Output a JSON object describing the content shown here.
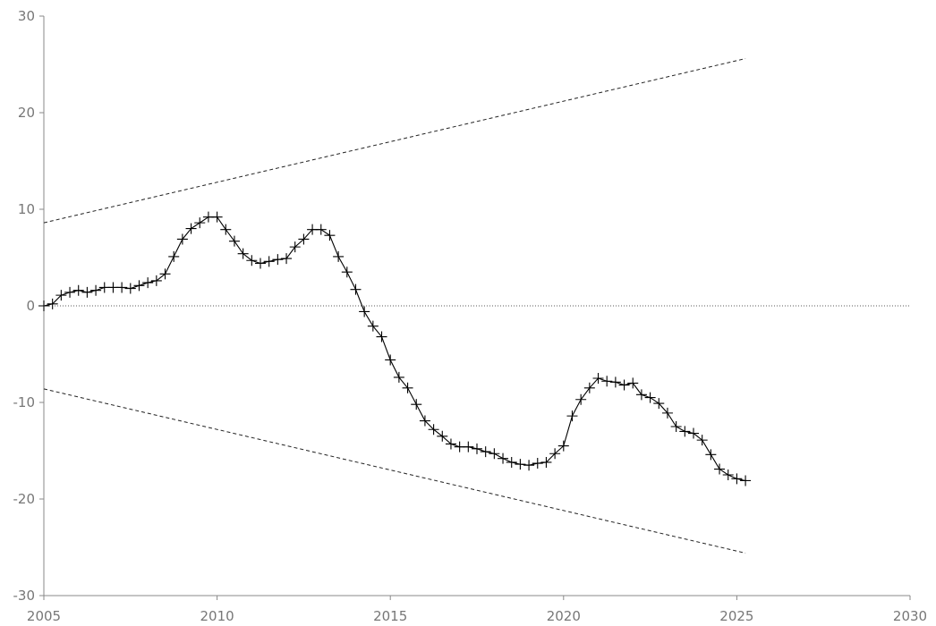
{
  "chart_data": {
    "type": "line",
    "title": "",
    "xlabel": "",
    "ylabel": "",
    "xlim": [
      2005,
      2030
    ],
    "ylim": [
      -30,
      30
    ],
    "x_ticks": [
      2005,
      2010,
      2015,
      2020,
      2025,
      2030
    ],
    "y_ticks": [
      -30,
      -20,
      -10,
      0,
      10,
      20,
      30
    ],
    "x_tick_labels": [
      "2005",
      "2010",
      "2015",
      "2020",
      "2025",
      "2030"
    ],
    "y_tick_labels": [
      "-30",
      "-20",
      "-10",
      "0",
      "10",
      "20",
      "30"
    ],
    "grid": false,
    "series": [
      {
        "marker": "plus",
        "color": "#000000",
        "x": [
          2005.0,
          2005.25,
          2005.5,
          2005.75,
          2006.0,
          2006.25,
          2006.5,
          2006.75,
          2007.0,
          2007.25,
          2007.5,
          2007.75,
          2008.0,
          2008.25,
          2008.5,
          2008.75,
          2009.0,
          2009.25,
          2009.5,
          2009.75,
          2010.0,
          2010.25,
          2010.5,
          2010.75,
          2011.0,
          2011.25,
          2011.5,
          2011.75,
          2012.0,
          2012.25,
          2012.5,
          2012.75,
          2013.0,
          2013.25,
          2013.5,
          2013.75,
          2014.0,
          2014.25,
          2014.5,
          2014.75,
          2015.0,
          2015.25,
          2015.5,
          2015.75,
          2016.0,
          2016.25,
          2016.5,
          2016.75,
          2017.0,
          2017.25,
          2017.5,
          2017.75,
          2018.0,
          2018.25,
          2018.5,
          2018.75,
          2019.0,
          2019.25,
          2019.5,
          2019.75,
          2020.0,
          2020.25,
          2020.5,
          2020.75,
          2021.0,
          2021.25,
          2021.5,
          2021.75,
          2022.0,
          2022.25,
          2022.5,
          2022.75,
          2023.0,
          2023.25,
          2023.5,
          2023.75,
          2024.0,
          2024.25,
          2024.5,
          2024.75,
          2025.0,
          2025.25
        ],
        "y": [
          0.0,
          0.2,
          1.1,
          1.4,
          1.6,
          1.4,
          1.6,
          1.9,
          1.9,
          1.9,
          1.8,
          2.1,
          2.4,
          2.6,
          3.3,
          5.1,
          6.9,
          8.0,
          8.6,
          9.2,
          9.2,
          7.9,
          6.7,
          5.4,
          4.7,
          4.4,
          4.6,
          4.8,
          4.9,
          6.1,
          6.9,
          7.9,
          7.9,
          7.3,
          5.1,
          3.5,
          1.7,
          -0.6,
          -2.1,
          -3.2,
          -5.6,
          -7.4,
          -8.5,
          -10.2,
          -11.9,
          -12.8,
          -13.5,
          -14.3,
          -14.6,
          -14.6,
          -14.8,
          -15.1,
          -15.3,
          -15.8,
          -16.2,
          -16.4,
          -16.5,
          -16.3,
          -16.2,
          -15.3,
          -14.5,
          -11.4,
          -9.7,
          -8.5,
          -7.5,
          -7.8,
          -7.9,
          -8.2,
          -8.0,
          -9.2,
          -9.5,
          -10.1,
          -11.1,
          -12.5,
          -13.0,
          -13.2,
          -13.9,
          -15.4,
          -16.9,
          -17.5,
          -17.9,
          -18.1
        ]
      },
      {
        "style": "dashed",
        "color": "#222222",
        "x": [
          2005.0,
          2025.25
        ],
        "y": [
          8.6,
          25.6
        ]
      },
      {
        "style": "dashed",
        "color": "#222222",
        "x": [
          2005.0,
          2025.25
        ],
        "y": [
          -8.6,
          -25.6
        ]
      },
      {
        "style": "dotted",
        "color": "#222222",
        "x": [
          2005.0,
          2030.0
        ],
        "y": [
          0.0,
          0.0
        ]
      }
    ]
  }
}
